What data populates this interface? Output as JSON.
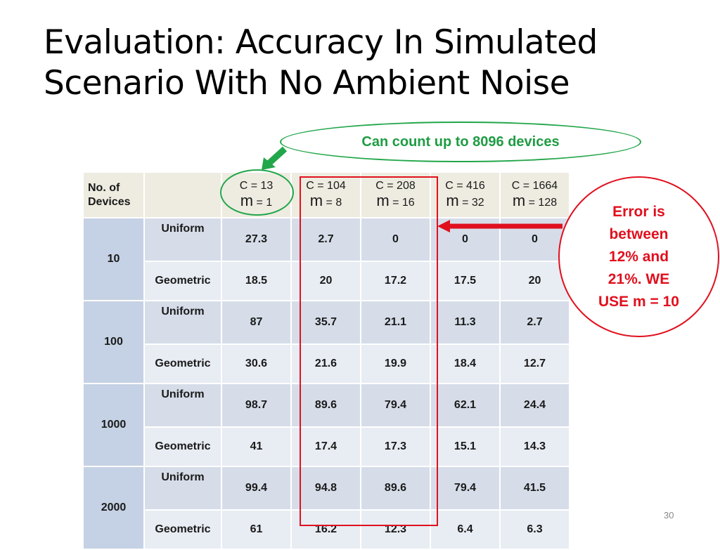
{
  "slide": {
    "title_line1": "Evaluation: Accuracy In Simulated",
    "title_line2": "Scenario With No Ambient Noise",
    "page_number": "30"
  },
  "callouts": {
    "green": "Can count up to 8096 devices",
    "red_lines": [
      "Error is",
      "between",
      "12% and",
      "21%. WE",
      "USE m = 10"
    ]
  },
  "table": {
    "header_devices": [
      "No. of",
      "Devices"
    ],
    "columns": [
      {
        "c": "C = 13",
        "m_letter": "m",
        "m_val": "= 1"
      },
      {
        "c": "C = 104",
        "m_letter": "m",
        "m_val": "= 8"
      },
      {
        "c": "C = 208",
        "m_letter": "m",
        "m_val": "= 16"
      },
      {
        "c": "C = 416",
        "m_letter": "m",
        "m_val": "= 32"
      },
      {
        "c": "C = 1664",
        "m_letter": "m",
        "m_val": "= 128"
      }
    ],
    "groups": [
      {
        "devices": "10",
        "rows": [
          {
            "dist": "Uniform",
            "values": [
              "27.3",
              "2.7",
              "0",
              "0",
              "0"
            ]
          },
          {
            "dist": "Geometric",
            "values": [
              "18.5",
              "20",
              "17.2",
              "17.5",
              "20"
            ]
          }
        ]
      },
      {
        "devices": "100",
        "rows": [
          {
            "dist": "Uniform",
            "values": [
              "87",
              "35.7",
              "21.1",
              "11.3",
              "2.7"
            ]
          },
          {
            "dist": "Geometric",
            "values": [
              "30.6",
              "21.6",
              "19.9",
              "18.4",
              "12.7"
            ]
          }
        ]
      },
      {
        "devices": "1000",
        "rows": [
          {
            "dist": "Uniform",
            "values": [
              "98.7",
              "89.6",
              "79.4",
              "62.1",
              "24.4"
            ]
          },
          {
            "dist": "Geometric",
            "values": [
              "41",
              "17.4",
              "17.3",
              "15.1",
              "14.3"
            ]
          }
        ]
      },
      {
        "devices": "2000",
        "rows": [
          {
            "dist": "Uniform",
            "values": [
              "99.4",
              "94.8",
              "89.6",
              "79.4",
              "41.5"
            ]
          },
          {
            "dist": "Geometric",
            "values": [
              "61",
              "16.2",
              "12.3",
              "6.4",
              "6.3"
            ]
          }
        ]
      }
    ]
  },
  "colors": {
    "header_bg": "#eeece1",
    "row_dark": "#d6dde9",
    "row_light": "#e8ecf3",
    "count_cell": "#c5d1e4",
    "green_accent": "#22a64a",
    "red_accent": "#e0101e"
  }
}
